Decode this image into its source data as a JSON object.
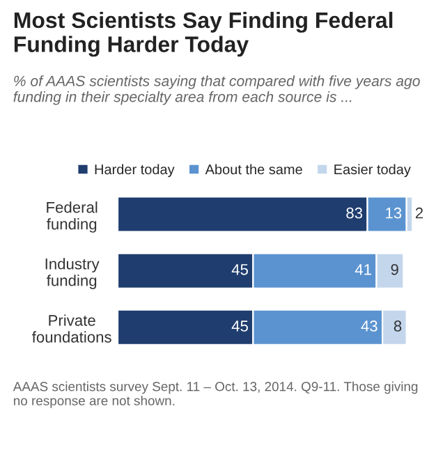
{
  "chart_data": {
    "type": "bar",
    "orientation": "horizontal",
    "stacked": true,
    "data_labels": true,
    "legend": "top",
    "grid": false,
    "title": "Most Scientists Say Finding Federal Funding Harder Today",
    "subtitle": "% of AAAS scientists saying that compared with five years ago funding in their specialty area from each source is ...",
    "categories": [
      "Federal funding",
      "Industry funding",
      "Private foundations"
    ],
    "series": [
      {
        "name": "Harder today",
        "color": "#1f3d6e",
        "values": [
          83,
          45,
          45
        ]
      },
      {
        "name": "About the same",
        "color": "#5b93d0",
        "values": [
          13,
          41,
          43
        ]
      },
      {
        "name": "Easier today",
        "color": "#c3d6ec",
        "values": [
          2,
          9,
          8
        ]
      }
    ],
    "annotations": [
      "AAAS scientists survey Sept. 11 – Oct. 13, 2014. Q9-11. Those giving no response are not shown."
    ]
  }
}
